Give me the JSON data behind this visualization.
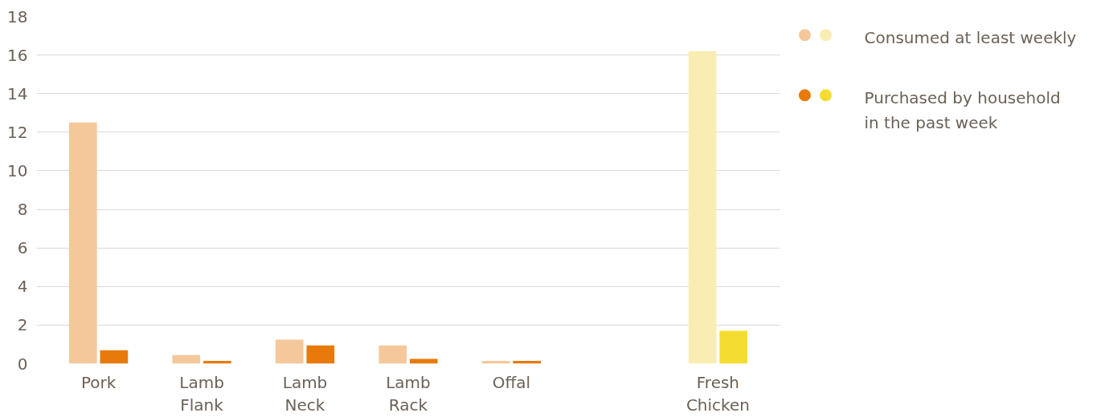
{
  "chart_data": {
    "type": "bar",
    "categories": [
      "Pork",
      "Lamb\nFlank",
      "Lamb\nNeck",
      "Lamb\nRack",
      "Offal",
      null,
      "Fresh\nChicken"
    ],
    "series": [
      {
        "name": "Consumed at least weekly",
        "colors": [
          "#f4c89a",
          "#f4c89a",
          "#f4c89a",
          "#f4c89a",
          "#f4c89a",
          null,
          "#f9edb4"
        ],
        "values": [
          12.5,
          0.45,
          1.25,
          0.95,
          0.15,
          null,
          16.2
        ]
      },
      {
        "name": "Purchased by household\nin the past week",
        "colors": [
          "#e87a0c",
          "#e87a0c",
          "#e87a0c",
          "#e87a0c",
          "#e87a0c",
          null,
          "#f5dc30"
        ],
        "values": [
          0.7,
          0.15,
          0.95,
          0.25,
          0.15,
          null,
          1.7
        ]
      }
    ],
    "ylim": [
      0,
      18
    ],
    "yticks": [
      0,
      2,
      4,
      6,
      8,
      10,
      12,
      14,
      16,
      18
    ],
    "grid": "y",
    "legend": "top right"
  }
}
